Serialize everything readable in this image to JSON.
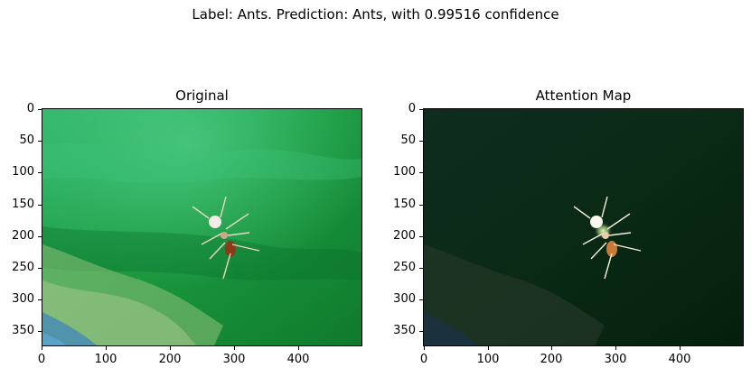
{
  "figure": {
    "suptitle": "Label: Ants. Prediction: Ants, with 0.99516 confidence"
  },
  "chart_data": [
    {
      "type": "heatmap",
      "title": "Original",
      "image_content": "close-up photo of an ant on a green surface",
      "xlim": [
        0,
        500
      ],
      "ylim": [
        375,
        0
      ],
      "xticks": [
        "0",
        "100",
        "200",
        "300",
        "400"
      ],
      "yticks": [
        "0",
        "50",
        "100",
        "150",
        "200",
        "250",
        "300",
        "350"
      ]
    },
    {
      "type": "heatmap",
      "title": "Attention Map",
      "image_content": "same photo darkened except the highlighted ant region",
      "xlim": [
        0,
        500
      ],
      "ylim": [
        375,
        0
      ],
      "xticks": [
        "0",
        "100",
        "200",
        "300",
        "400"
      ],
      "yticks": [
        "0",
        "50",
        "100",
        "150",
        "200",
        "250",
        "300",
        "350"
      ]
    }
  ],
  "colors": {
    "surface_green": "#1f9a45",
    "surface_dark_green": "#0c6a2a",
    "highlight_yellow": "#f4ffb0",
    "attention_shadow": "#031a0b"
  }
}
